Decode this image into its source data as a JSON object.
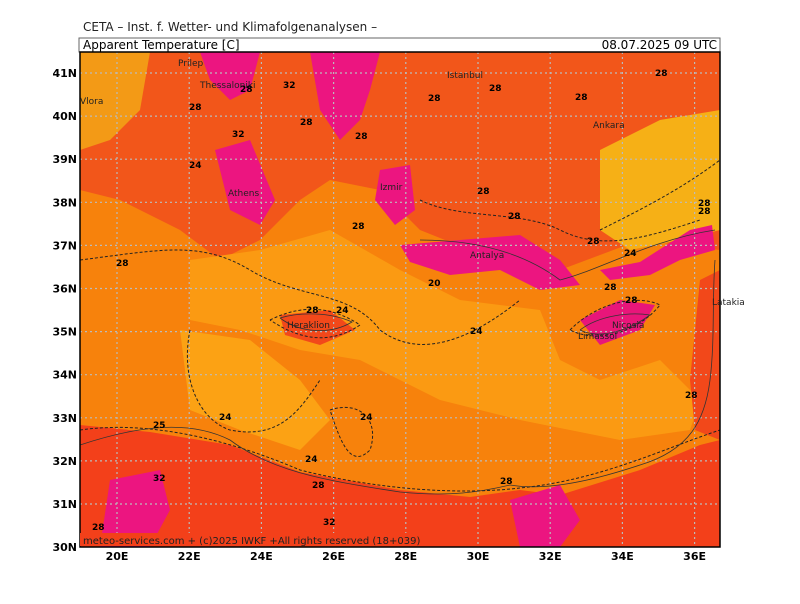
{
  "header": {
    "institute": "CETA – Inst. f. Wetter- und Klimafolgenanalysen –",
    "title": "Apparent Temperature [C]",
    "valid_time": "08.07.2025 09 UTC"
  },
  "map": {
    "lat_labels": [
      "41N",
      "40N",
      "39N",
      "38N",
      "37N",
      "36N",
      "35N",
      "34N",
      "33N",
      "32N",
      "31N",
      "30N"
    ],
    "lon_labels": [
      "20E",
      "22E",
      "24E",
      "26E",
      "28E",
      "30E",
      "32E",
      "34E",
      "36E"
    ],
    "cities": [
      "Prilep",
      "Thessaloniki",
      "Istanbul",
      "Ankara",
      "Izmir",
      "Antalya",
      "Heraklion",
      "Limassol",
      "Nicosia",
      "Latakia",
      "Vlora",
      "Athens"
    ],
    "contour_labels": [
      "28",
      "24",
      "32",
      "28",
      "28",
      "32",
      "28",
      "28",
      "28",
      "28",
      "28",
      "28",
      "24",
      "28",
      "28",
      "28",
      "20",
      "28",
      "24",
      "28",
      "28",
      "24",
      "24",
      "24",
      "28",
      "24",
      "25",
      "32",
      "28",
      "32",
      "28",
      "28",
      "28",
      "28",
      "28"
    ]
  },
  "footer": "meteo-services.com + (c)2025 IWKF +All rights reserved (18+039)"
}
